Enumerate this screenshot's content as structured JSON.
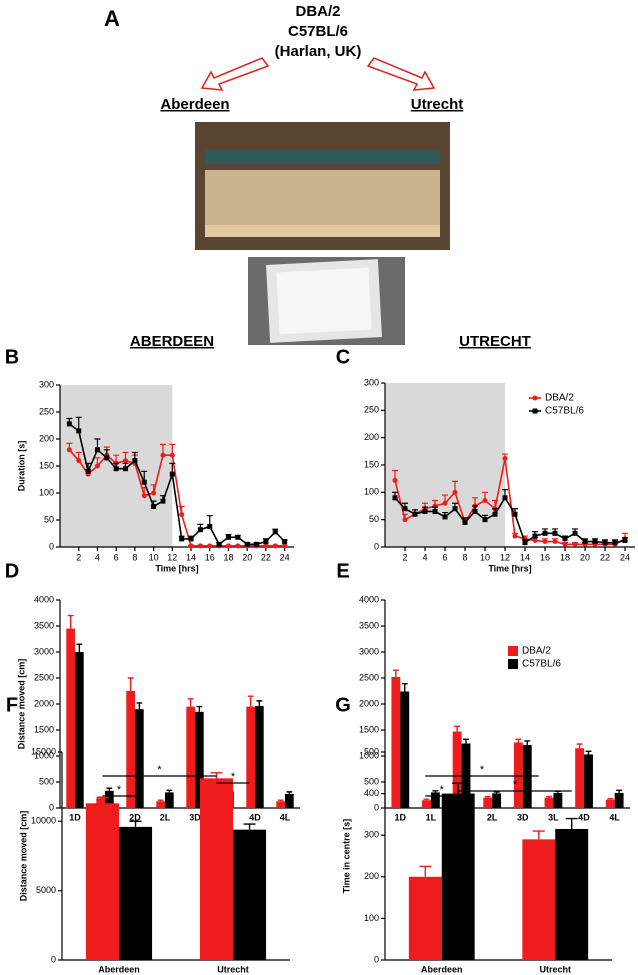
{
  "panel_a": {
    "label": "A",
    "strain_lines": [
      "DBA/2",
      "C57BL/6",
      "(Harlan, UK)"
    ],
    "sites": [
      "Aberdeen",
      "Utrecht"
    ],
    "column_headers": [
      "ABERDEEN",
      "UTRECHT"
    ]
  },
  "chart_data": [
    {
      "label": "B",
      "type": "line",
      "xlabel": "Time [hrs]",
      "ylabel": "Duration [s]",
      "x": [
        1,
        2,
        3,
        4,
        5,
        6,
        7,
        8,
        9,
        10,
        11,
        12,
        13,
        14,
        15,
        16,
        17,
        18,
        19,
        20,
        21,
        22,
        23,
        24
      ],
      "xlim": [
        0,
        25
      ],
      "xticks": [
        2,
        4,
        6,
        8,
        10,
        12,
        14,
        16,
        18,
        20,
        22,
        24
      ],
      "ylim": [
        0,
        300
      ],
      "yticks": [
        0,
        50,
        100,
        150,
        200,
        250,
        300
      ],
      "span": [
        0,
        12
      ],
      "legend": false,
      "series": [
        {
          "name": "DBA/2",
          "color": "#ee1c1c",
          "marker": "circle",
          "values": [
            180,
            160,
            135,
            150,
            170,
            155,
            160,
            155,
            95,
            100,
            170,
            170,
            60,
            2,
            2,
            2,
            2,
            2,
            2,
            2,
            2,
            2,
            2,
            2
          ],
          "errors": [
            12,
            15,
            8,
            15,
            15,
            15,
            15,
            15,
            15,
            15,
            20,
            20,
            15,
            1,
            1,
            1,
            1,
            1,
            1,
            1,
            1,
            1,
            1,
            1
          ]
        },
        {
          "name": "C57BL/6",
          "color": "#000000",
          "marker": "square",
          "values": [
            228,
            215,
            140,
            180,
            165,
            145,
            145,
            160,
            120,
            75,
            85,
            135,
            15,
            15,
            32,
            38,
            5,
            18,
            18,
            5,
            5,
            10,
            28,
            10
          ],
          "errors": [
            10,
            25,
            15,
            20,
            15,
            10,
            10,
            15,
            20,
            10,
            10,
            20,
            5,
            5,
            10,
            20,
            3,
            5,
            3,
            3,
            3,
            5,
            5,
            3
          ]
        }
      ]
    },
    {
      "label": "C",
      "type": "line",
      "xlabel": "Time [hrs]",
      "x": [
        1,
        2,
        3,
        4,
        5,
        6,
        7,
        8,
        9,
        10,
        11,
        12,
        13,
        14,
        15,
        16,
        17,
        18,
        19,
        20,
        21,
        22,
        23,
        24
      ],
      "xlim": [
        0,
        25
      ],
      "xticks": [
        2,
        4,
        6,
        8,
        10,
        12,
        14,
        16,
        18,
        20,
        22,
        24
      ],
      "ylim": [
        0,
        300
      ],
      "yticks": [
        0,
        50,
        100,
        150,
        200,
        250,
        300
      ],
      "span": [
        0,
        12
      ],
      "legend": true,
      "series": [
        {
          "name": "DBA/2",
          "color": "#ee1c1c",
          "marker": "circle",
          "values": [
            122,
            50,
            60,
            70,
            75,
            80,
            100,
            45,
            75,
            85,
            70,
            162,
            20,
            15,
            12,
            10,
            10,
            5,
            5,
            5,
            5,
            5,
            5,
            15
          ],
          "errors": [
            18,
            10,
            8,
            10,
            10,
            15,
            20,
            8,
            15,
            15,
            15,
            8,
            5,
            5,
            5,
            5,
            5,
            3,
            3,
            3,
            3,
            3,
            3,
            10
          ]
        },
        {
          "name": "C57BL/6",
          "color": "#000000",
          "marker": "square",
          "values": [
            90,
            70,
            60,
            65,
            65,
            55,
            70,
            45,
            65,
            50,
            60,
            90,
            60,
            8,
            20,
            25,
            25,
            15,
            25,
            10,
            10,
            8,
            8,
            12
          ],
          "errors": [
            10,
            10,
            8,
            8,
            8,
            8,
            10,
            8,
            10,
            8,
            10,
            15,
            10,
            5,
            8,
            8,
            8,
            5,
            8,
            5,
            5,
            5,
            5,
            5
          ]
        }
      ]
    },
    {
      "label": "D",
      "type": "bar",
      "ylabel": "Distance moved [cm]",
      "categories": [
        "1D",
        "1L",
        "2D",
        "2L",
        "3D",
        "3L",
        "4D",
        "4L"
      ],
      "ylim": [
        0,
        4000
      ],
      "yticks": [
        0,
        500,
        1000,
        1500,
        2000,
        2500,
        3000,
        3500,
        4000
      ],
      "legend": false,
      "series": [
        {
          "name": "DBA/2",
          "color": "#ee1c1c",
          "values": [
            3450,
            180,
            2250,
            130,
            1950,
            150,
            1950,
            130
          ],
          "errors": [
            250,
            30,
            250,
            20,
            150,
            20,
            200,
            20
          ]
        },
        {
          "name": "C57BL/6",
          "color": "#000000",
          "values": [
            3000,
            330,
            1900,
            300,
            1850,
            320,
            1960,
            270
          ],
          "errors": [
            150,
            50,
            120,
            40,
            100,
            30,
            100,
            40
          ]
        }
      ]
    },
    {
      "label": "E",
      "type": "bar",
      "categories": [
        "1D",
        "1L",
        "2D",
        "2L",
        "3D",
        "3L",
        "4D",
        "4L"
      ],
      "ylim": [
        0,
        4000
      ],
      "yticks": [
        0,
        500,
        1000,
        1500,
        2000,
        2500,
        3000,
        3500,
        4000
      ],
      "legend": true,
      "series": [
        {
          "name": "DBA/2",
          "color": "#ee1c1c",
          "values": [
            2520,
            150,
            1470,
            200,
            1260,
            200,
            1150,
            160
          ],
          "errors": [
            130,
            20,
            100,
            20,
            60,
            20,
            80,
            20
          ]
        },
        {
          "name": "C57BL/6",
          "color": "#000000",
          "values": [
            2240,
            300,
            1240,
            280,
            1210,
            290,
            1030,
            290
          ],
          "errors": [
            150,
            30,
            80,
            30,
            80,
            30,
            60,
            50
          ]
        }
      ]
    },
    {
      "label": "F",
      "type": "bar",
      "ylabel": "Distance moved [cm]",
      "categories": [
        "Aberdeen",
        "Utrecht"
      ],
      "ylim": [
        0,
        15000
      ],
      "yticks": [
        0,
        5000,
        10000,
        15000
      ],
      "legend": false,
      "annotations": [
        "*",
        "*",
        "*"
      ],
      "series": [
        {
          "color": "#ee1c1c",
          "values": [
            11300,
            13100
          ],
          "errors": [
            400,
            400
          ]
        },
        {
          "color": "#000000",
          "values": [
            9600,
            9400
          ],
          "errors": [
            400,
            400
          ]
        }
      ]
    },
    {
      "label": "G",
      "type": "bar",
      "ylabel": "Time in centre [s]",
      "categories": [
        "Aberdeen",
        "Utrecht"
      ],
      "ylim": [
        0,
        500
      ],
      "yticks": [
        0,
        100,
        200,
        300,
        400,
        500
      ],
      "legend": false,
      "annotations": [
        "*",
        "*",
        "*"
      ],
      "series": [
        {
          "color": "#ee1c1c",
          "values": [
            200,
            290
          ],
          "errors": [
            25,
            20
          ]
        },
        {
          "color": "#000000",
          "values": [
            400,
            315
          ],
          "errors": [
            25,
            25
          ]
        }
      ]
    }
  ]
}
